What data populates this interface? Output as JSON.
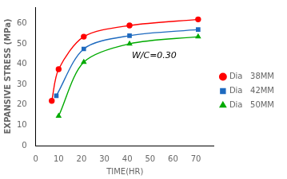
{
  "chart_data": {
    "type": "line",
    "xlabel": "TIME(HR)",
    "ylabel": "EXPANSIVE STRESS (MPa)",
    "series": [
      {
        "name": "Dia   38MM",
        "color": "#ff0000",
        "marker": "circle",
        "x": [
          7,
          10,
          21,
          41,
          71
        ],
        "values": [
          22,
          37.5,
          53.5,
          59,
          62
        ]
      },
      {
        "name": "Dia   42MM",
        "color": "#1e6abf",
        "marker": "square",
        "x": [
          9,
          21,
          41,
          71
        ],
        "values": [
          24.5,
          47.5,
          54,
          57
        ]
      },
      {
        "name": "Dia   50MM",
        "color": "#00aa00",
        "marker": "triangle",
        "x": [
          10,
          21,
          41,
          71
        ],
        "values": [
          14.5,
          41,
          50,
          53.5
        ]
      }
    ],
    "annotations": [
      {
        "text": "W/C=0.30",
        "x": 42,
        "y": 42
      }
    ],
    "xlim": [
      0,
      78
    ],
    "xticks": [
      0,
      10,
      20,
      30,
      40,
      50,
      60,
      70
    ],
    "ylim": [
      0,
      68
    ],
    "yticks": [
      0,
      10,
      20,
      30,
      40,
      50,
      60
    ],
    "grid": false,
    "legend": "right"
  }
}
